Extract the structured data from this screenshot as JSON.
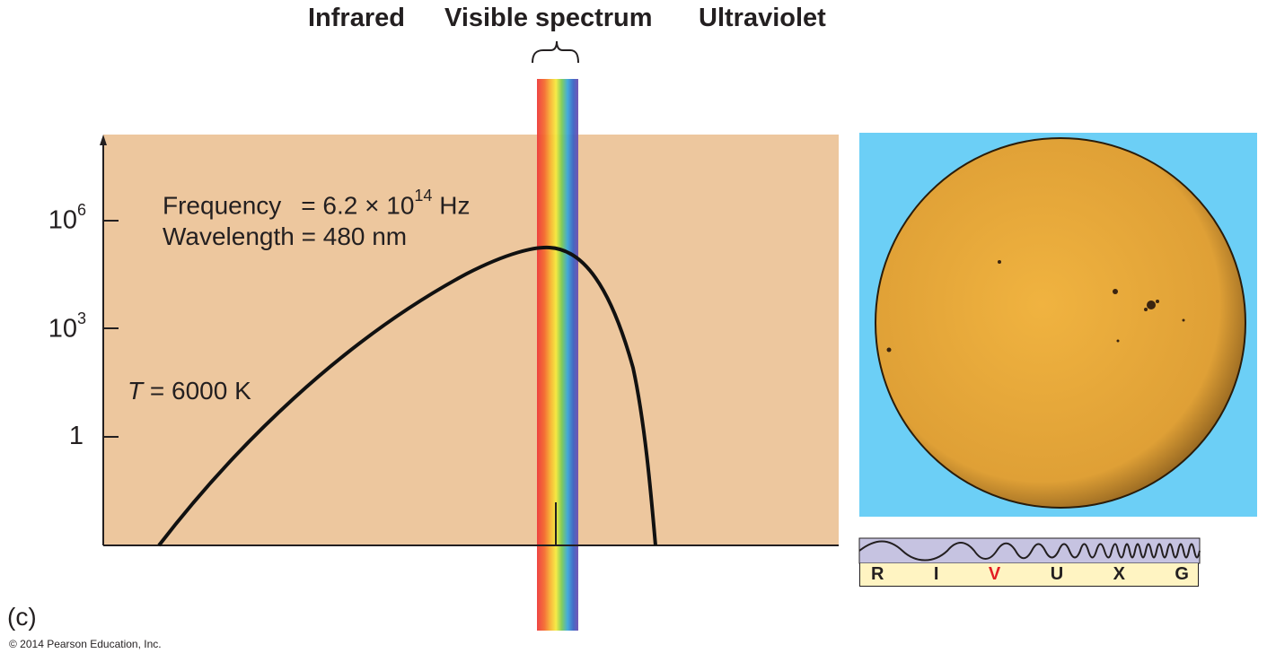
{
  "header": {
    "infrared": "Infrared",
    "visible": "Visible spectrum",
    "ultraviolet": "Ultraviolet"
  },
  "plot": {
    "background": "#edc79e",
    "ticks": [
      {
        "base": "10",
        "exp": "6",
        "value": 1000000
      },
      {
        "base": "10",
        "exp": "3",
        "value": 1000
      },
      {
        "base": "1",
        "exp": "",
        "value": 1
      }
    ],
    "annotation": {
      "frequency_label": "Frequency",
      "frequency_eq": "= 6.2 × 10",
      "frequency_exp": "14",
      "frequency_unit": " Hz",
      "wavelength_label": "Wavelength",
      "wavelength_eq": "= 480 nm"
    },
    "temperature": {
      "symbol": "T",
      "value": " = 6000 K"
    }
  },
  "riv": {
    "letters": [
      "R",
      "I",
      "V",
      "U",
      "X",
      "G"
    ],
    "active": "V",
    "highlight_color": "#e31e24",
    "wave_color": "#c6c3e1"
  },
  "sun": {
    "background": "#6ccff6",
    "disk_color": "#e9a93a"
  },
  "footer": {
    "panel": "(c)",
    "copyright": "© 2014 Pearson Education, Inc."
  }
}
